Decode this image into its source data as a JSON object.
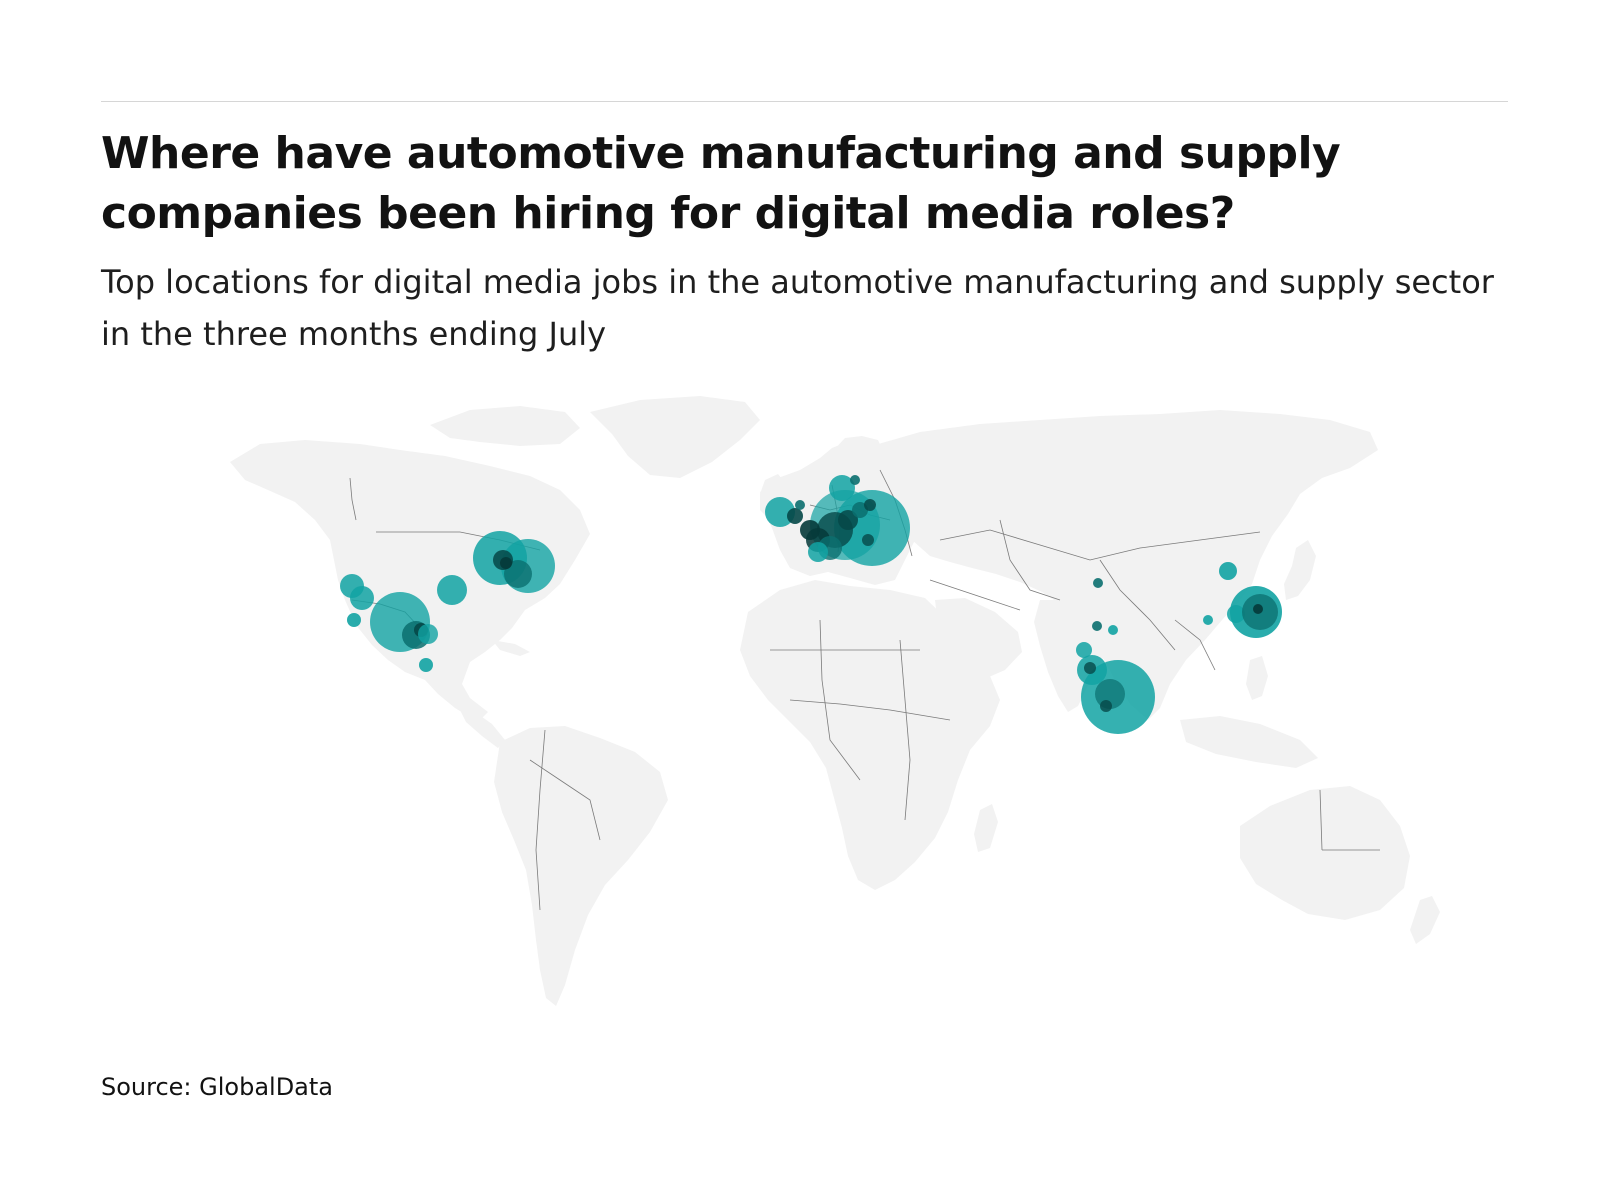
{
  "header": {
    "title": "Where have automotive manufacturing and supply companies been hiring for digital media roles?",
    "subtitle": "Top locations for digital media jobs in the automotive manufacturing and supply sector in the three months ending July"
  },
  "footer": {
    "source": "Source: GlobalData"
  },
  "colors": {
    "land": "#f2f2f2",
    "border": "#7a7a7a",
    "bubble": "#12a3a3",
    "bubble_dark": "#064848"
  },
  "map": {
    "type": "proportional-symbol-world-map",
    "legend": "none",
    "regions": [
      "north-america",
      "europe",
      "south-asia",
      "east-asia"
    ]
  }
}
